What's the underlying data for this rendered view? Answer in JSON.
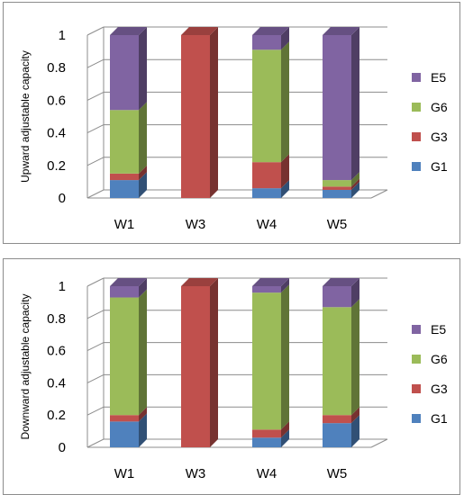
{
  "chart_data": [
    {
      "type": "bar",
      "stacked": true,
      "three_d": true,
      "categories": [
        "W1",
        "W3",
        "W4",
        "W5"
      ],
      "ylabel": "Upward adjustable capacity",
      "ylim": [
        0,
        1
      ],
      "yticks": [
        "0",
        "0.2",
        "0.4",
        "0.6",
        "0.8",
        "1"
      ],
      "grid": true,
      "legend_position": "right",
      "series": [
        {
          "name": "G1",
          "color": "#4F81BD",
          "values": [
            0.11,
            0.0,
            0.06,
            0.05
          ]
        },
        {
          "name": "G3",
          "color": "#C0504D",
          "values": [
            0.04,
            1.0,
            0.16,
            0.02
          ]
        },
        {
          "name": "G6",
          "color": "#9BBB59",
          "values": [
            0.39,
            0.0,
            0.69,
            0.04
          ]
        },
        {
          "name": "E5",
          "color": "#8064A2",
          "values": [
            0.46,
            0.0,
            0.09,
            0.89
          ]
        }
      ]
    },
    {
      "type": "bar",
      "stacked": true,
      "three_d": true,
      "categories": [
        "W1",
        "W3",
        "W4",
        "W5"
      ],
      "ylabel": "Downward adjustable capacity",
      "ylim": [
        0,
        1
      ],
      "yticks": [
        "0",
        "0.2",
        "0.4",
        "0.6",
        "0.8",
        "1"
      ],
      "grid": true,
      "legend_position": "right",
      "series": [
        {
          "name": "G1",
          "color": "#4F81BD",
          "values": [
            0.16,
            0.0,
            0.06,
            0.15
          ]
        },
        {
          "name": "G3",
          "color": "#C0504D",
          "values": [
            0.04,
            1.0,
            0.05,
            0.05
          ]
        },
        {
          "name": "G6",
          "color": "#9BBB59",
          "values": [
            0.73,
            0.0,
            0.85,
            0.67
          ]
        },
        {
          "name": "E5",
          "color": "#8064A2",
          "values": [
            0.07,
            0.0,
            0.04,
            0.13
          ]
        }
      ]
    }
  ]
}
